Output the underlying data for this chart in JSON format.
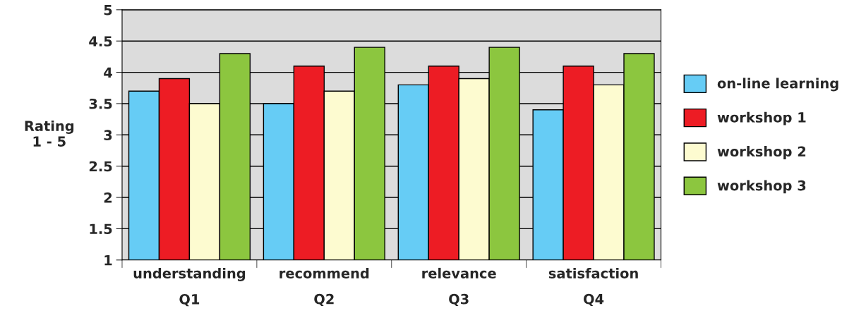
{
  "chart_data": {
    "type": "bar",
    "ylabel": "Rating\n1 - 5",
    "categories": [
      "understanding\nQ1",
      "recommend\nQ2",
      "relevance\nQ3",
      "satisfaction\nQ4"
    ],
    "series": [
      {
        "name": "on-line learning",
        "color": "#66ccf5",
        "values": [
          3.7,
          3.5,
          3.8,
          3.4
        ]
      },
      {
        "name": "workshop 1",
        "color": "#ed1c24",
        "values": [
          3.9,
          4.1,
          4.1,
          4.1
        ]
      },
      {
        "name": "workshop 2",
        "color": "#fdfbd0",
        "values": [
          3.5,
          3.7,
          3.9,
          3.8
        ]
      },
      {
        "name": "workshop 3",
        "color": "#8cc63f",
        "values": [
          4.3,
          4.4,
          4.4,
          4.3
        ]
      }
    ],
    "ylim": [
      1,
      5
    ],
    "yticks": [
      1,
      1.5,
      2,
      2.5,
      3,
      3.5,
      4,
      4.5,
      5
    ],
    "grid": "y",
    "legend": "right"
  }
}
